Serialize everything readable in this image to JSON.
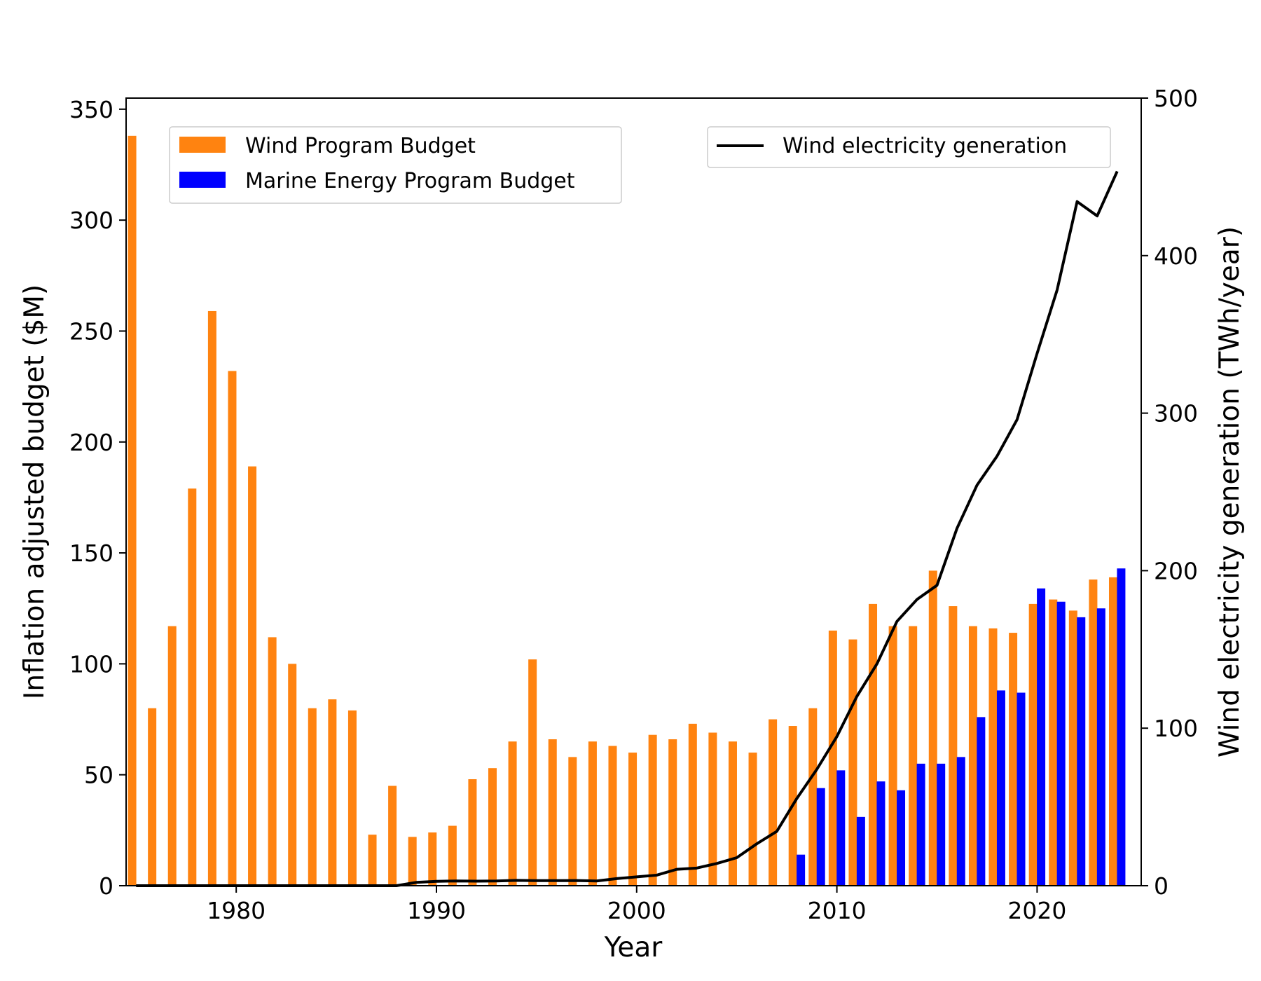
{
  "chart_data": {
    "type": "bar",
    "title": "",
    "xlabel": "Year",
    "ylabel": "Inflation adjusted budget ($M)",
    "y2label": "Wind electricity generation (TWh/year)",
    "xlim": [
      1974.5,
      2025.2
    ],
    "ylim": [
      0,
      355
    ],
    "y2lim": [
      0,
      500
    ],
    "xticks": [
      1980,
      1990,
      2000,
      2010,
      2020
    ],
    "yticks": [
      0,
      50,
      100,
      150,
      200,
      250,
      300,
      350
    ],
    "y2ticks": [
      0,
      100,
      200,
      300,
      400,
      500
    ],
    "grid": false,
    "legend_left_position": "top-left",
    "legend_right_position": "top-right",
    "colors": {
      "wind_budget": "#ff8310",
      "marine_budget": "#0000ff",
      "generation": "#000000"
    },
    "bar_series": [
      {
        "name": "Wind Program Budget",
        "axis": "left",
        "offset": -0.2,
        "x": [
          1975,
          1976,
          1977,
          1978,
          1979,
          1980,
          1981,
          1982,
          1983,
          1984,
          1985,
          1986,
          1987,
          1988,
          1989,
          1990,
          1991,
          1992,
          1993,
          1994,
          1995,
          1996,
          1997,
          1998,
          1999,
          2000,
          2001,
          2002,
          2003,
          2004,
          2005,
          2006,
          2007,
          2008,
          2009,
          2010,
          2011,
          2012,
          2013,
          2014,
          2015,
          2016,
          2017,
          2018,
          2019,
          2020,
          2021,
          2022,
          2023,
          2024
        ],
        "values": [
          338,
          80,
          117,
          179,
          259,
          232,
          189,
          112,
          100,
          80,
          84,
          79,
          23,
          45,
          22,
          24,
          27,
          48,
          53,
          65,
          102,
          66,
          58,
          65,
          63,
          60,
          68,
          66,
          73,
          69,
          65,
          60,
          75,
          72,
          80,
          115,
          111,
          127,
          117,
          117,
          142,
          126,
          117,
          116,
          114,
          127,
          129,
          124,
          138,
          139
        ]
      },
      {
        "name": "Marine Energy Program Budget",
        "axis": "left",
        "offset": 0.2,
        "x": [
          2008,
          2009,
          2010,
          2011,
          2012,
          2013,
          2014,
          2015,
          2016,
          2017,
          2018,
          2019,
          2020,
          2021,
          2022,
          2023,
          2024
        ],
        "values": [
          14,
          44,
          52,
          31,
          47,
          43,
          55,
          55,
          58,
          76,
          88,
          87,
          134,
          128,
          121,
          125,
          143
        ]
      }
    ],
    "line_series": [
      {
        "name": "Wind electricity generation",
        "axis": "right",
        "x": [
          1975,
          1976,
          1977,
          1978,
          1979,
          1980,
          1981,
          1982,
          1983,
          1984,
          1985,
          1986,
          1987,
          1988,
          1989,
          1990,
          1991,
          1992,
          1993,
          1994,
          1995,
          1996,
          1997,
          1998,
          1999,
          2000,
          2001,
          2002,
          2003,
          2004,
          2005,
          2006,
          2007,
          2008,
          2009,
          2010,
          2011,
          2012,
          2013,
          2014,
          2015,
          2016,
          2017,
          2018,
          2019,
          2020,
          2021,
          2022,
          2023,
          2024
        ],
        "values": [
          0,
          0,
          0,
          0,
          0,
          0,
          0,
          0,
          0,
          0,
          0,
          0,
          0,
          0,
          2.1,
          2.8,
          3.0,
          2.9,
          3.0,
          3.4,
          3.2,
          3.2,
          3.3,
          3.0,
          4.5,
          5.6,
          6.7,
          10.4,
          11.2,
          14.1,
          17.8,
          26.6,
          34.5,
          55.4,
          73.9,
          94.7,
          120.2,
          140.8,
          167.8,
          181.7,
          190.7,
          226.9,
          254.3,
          272.7,
          295.9,
          337.9,
          378.2,
          434.3,
          425.2,
          453.5
        ]
      }
    ]
  }
}
